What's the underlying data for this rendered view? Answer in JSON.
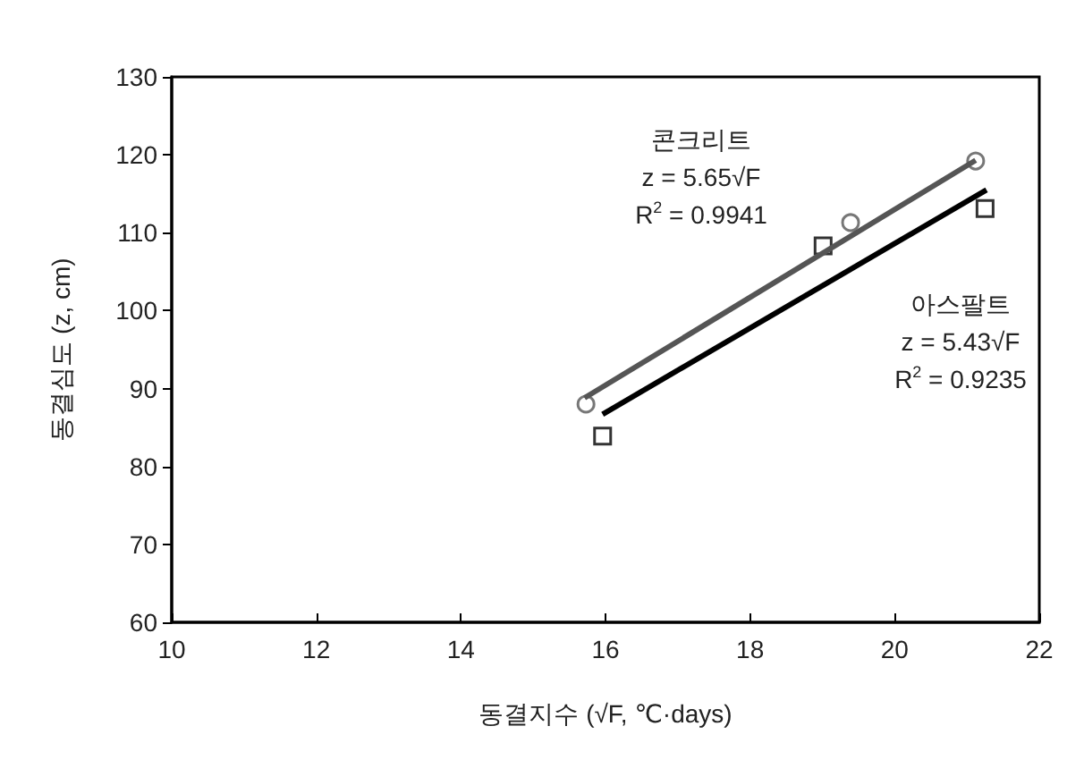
{
  "chart_data": {
    "type": "scatter",
    "xlabel": "동결지수 (√F, ℃·days)",
    "ylabel": "동결심도 (z, cm)",
    "xlim": [
      10,
      22
    ],
    "xticks": [
      10,
      12,
      14,
      16,
      18,
      20,
      22
    ],
    "ylim": [
      60,
      130
    ],
    "yticks": [
      60,
      70,
      80,
      90,
      100,
      110,
      120,
      130
    ],
    "grid": false,
    "series": [
      {
        "marker": "circle",
        "color": "#555555",
        "x": [
          15.73,
          19.39,
          21.12
        ],
        "values": [
          88.0,
          111.3,
          119.2
        ]
      },
      {
        "marker": "square",
        "color": "#000000",
        "x": [
          15.96,
          19.01,
          21.25
        ],
        "values": [
          83.9,
          108.3,
          113.1
        ]
      },
      {
        "type": "line",
        "marker": "none",
        "color": "#555555",
        "x": [
          15.71,
          21.12
        ],
        "values": [
          88.8,
          119.3
        ]
      },
      {
        "type": "line",
        "marker": "none",
        "color": "#000000",
        "x": [
          15.96,
          21.27
        ],
        "values": [
          86.7,
          115.5
        ]
      }
    ],
    "annotations": [
      "콘크리트",
      "z = 5.65√F",
      "R$^{2}$ = 0.9941",
      "아스팔트",
      "z = 5.43√F",
      "R$^{2}$ = 0.9235"
    ]
  }
}
